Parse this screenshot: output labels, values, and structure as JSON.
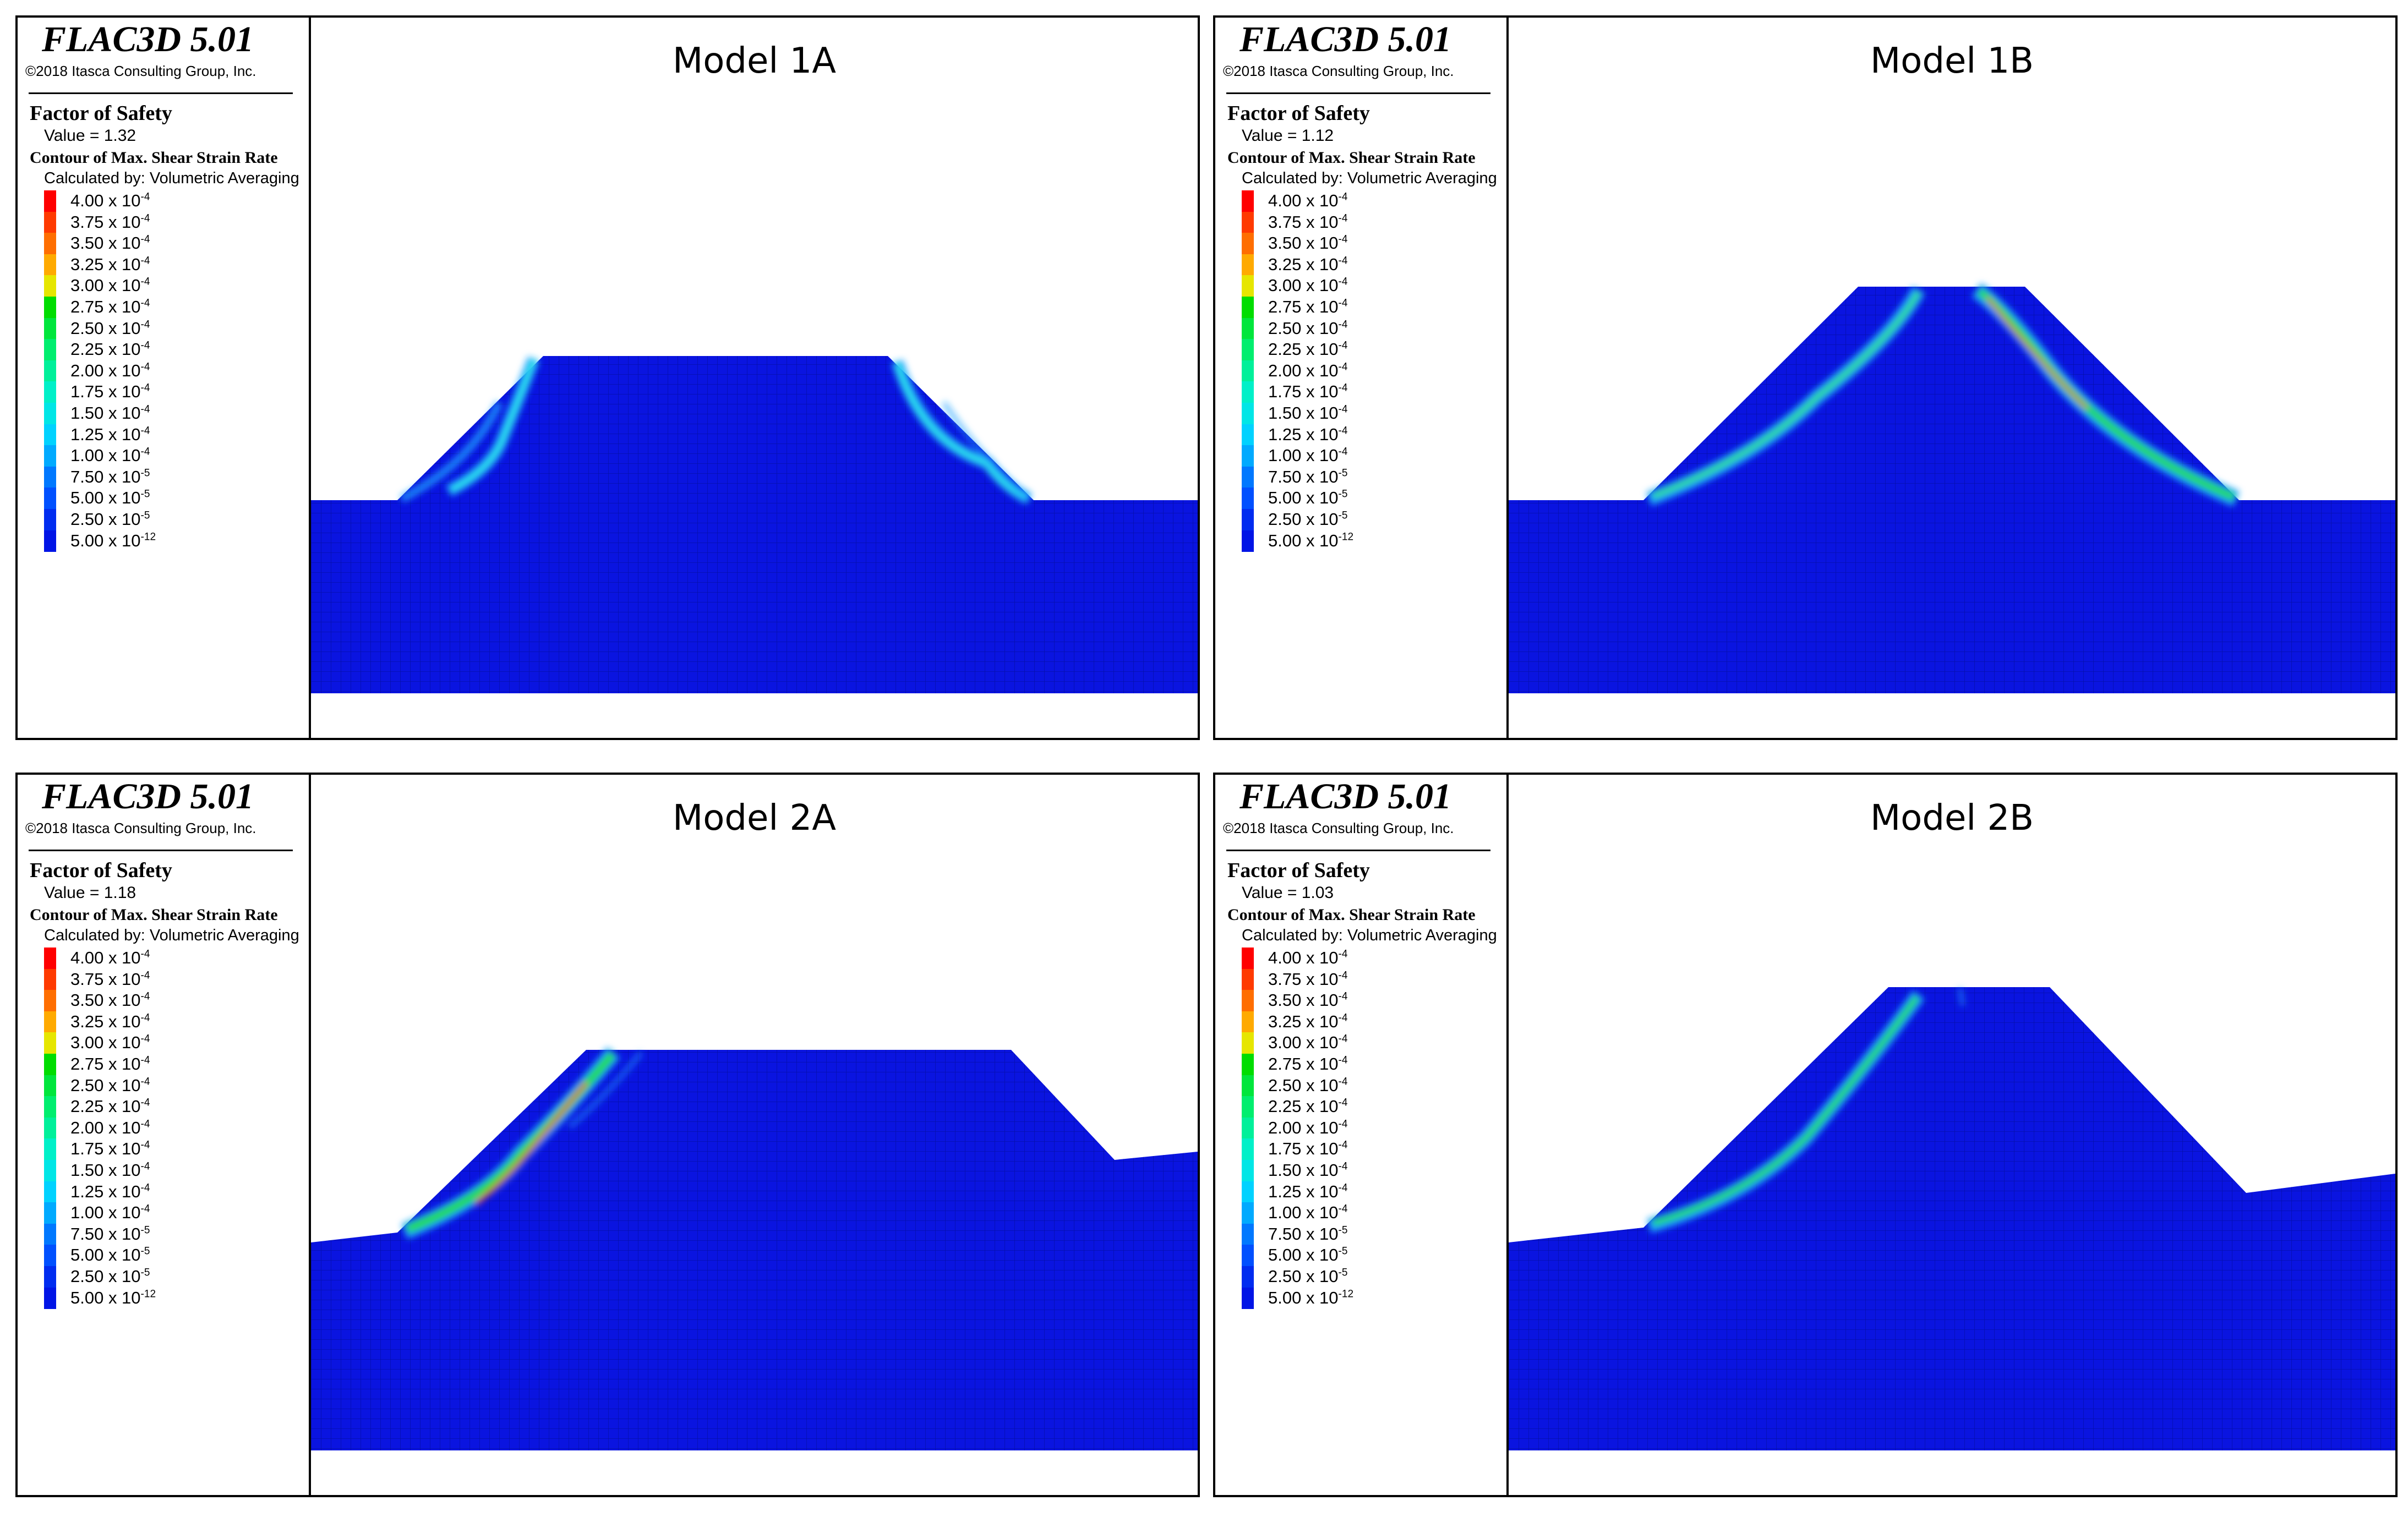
{
  "legend_common": {
    "app_title": "FLAC3D 5.01",
    "copyright": "©2018 Itasca Consulting Group, Inc.",
    "fos_label": "Factor of Safety",
    "contour_label": "Contour of Max. Shear Strain Rate",
    "calc_label": "Calculated by: Volumetric Averaging",
    "scale": [
      {
        "value": "4.00 x 10",
        "exp": "-4",
        "color": "#ff0000"
      },
      {
        "value": "3.75 x 10",
        "exp": "-4",
        "color": "#ff3a00"
      },
      {
        "value": "3.50 x 10",
        "exp": "-4",
        "color": "#ff6e00"
      },
      {
        "value": "3.25 x 10",
        "exp": "-4",
        "color": "#ffaa00"
      },
      {
        "value": "3.00 x 10",
        "exp": "-4",
        "color": "#e6e600"
      },
      {
        "value": "2.75 x 10",
        "exp": "-4",
        "color": "#00dd00"
      },
      {
        "value": "2.50 x 10",
        "exp": "-4",
        "color": "#00e63c"
      },
      {
        "value": "2.25 x 10",
        "exp": "-4",
        "color": "#00ee6e"
      },
      {
        "value": "2.00 x 10",
        "exp": "-4",
        "color": "#00f09a"
      },
      {
        "value": "1.75 x 10",
        "exp": "-4",
        "color": "#00f0c8"
      },
      {
        "value": "1.50 x 10",
        "exp": "-4",
        "color": "#00e6e6"
      },
      {
        "value": "1.25 x 10",
        "exp": "-4",
        "color": "#00d2ff"
      },
      {
        "value": "1.00 x 10",
        "exp": "-4",
        "color": "#00aaff"
      },
      {
        "value": "7.50 x 10",
        "exp": "-5",
        "color": "#0078ff"
      },
      {
        "value": "5.00 x 10",
        "exp": "-5",
        "color": "#0050ff"
      },
      {
        "value": "2.50 x 10",
        "exp": "-5",
        "color": "#002cf0"
      },
      {
        "value": "5.00 x 10",
        "exp": "-12",
        "color": "#0014e6"
      }
    ]
  },
  "models": {
    "m1a": {
      "title": "Model 1A",
      "fos_value": "Value = 1.32"
    },
    "m1b": {
      "title": "Model 1B",
      "fos_value": "Value = 1.12"
    },
    "m2a": {
      "title": "Model 2A",
      "fos_value": "Value = 1.18"
    },
    "m2b": {
      "title": "Model 2B",
      "fos_value": "Value = 1.03"
    }
  },
  "colors": {
    "mesh_fill": "#0a14e0",
    "mesh_grid": "#000a80",
    "band_low": "#1ea0ff",
    "band_mid": "#20dc40",
    "band_high": "#ff3000"
  }
}
